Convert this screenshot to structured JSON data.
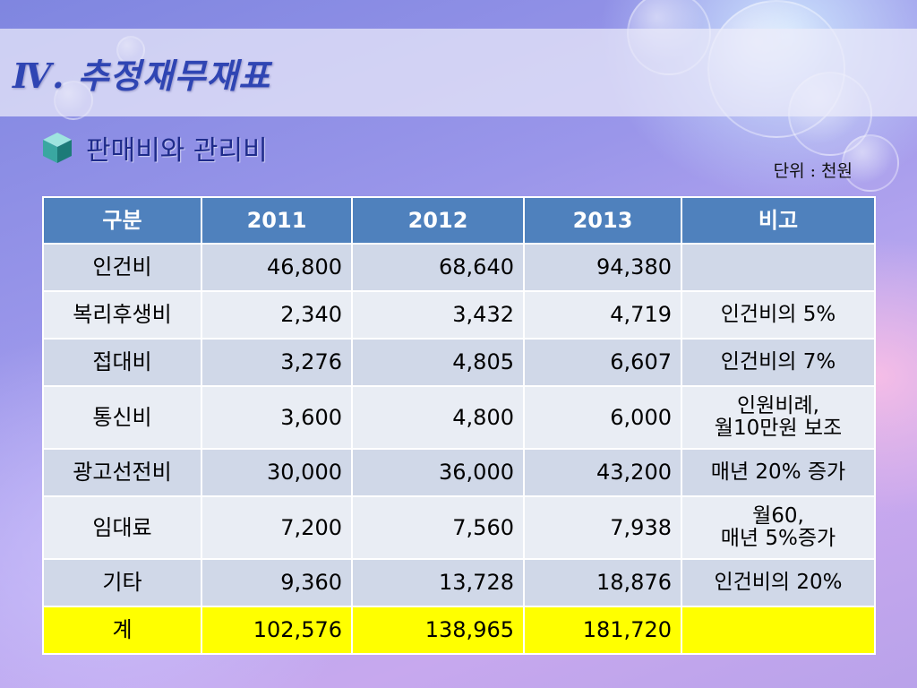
{
  "slide": {
    "title": "Ⅳ. 추정재무재표",
    "section_title": "판매비와 관리비",
    "unit_label": "단위 : 천원",
    "bullet_icon": "cube-icon"
  },
  "table": {
    "headers": [
      "구분",
      "2011",
      "2012",
      "2013",
      "비고"
    ],
    "rows": [
      {
        "category": "인건비",
        "v2011": "46,800",
        "v2012": "68,640",
        "v2013": "94,380",
        "note": [
          "",
          ""
        ]
      },
      {
        "category": "복리후생비",
        "v2011": "2,340",
        "v2012": "3,432",
        "v2013": "4,719",
        "note": [
          "인건비의 5%",
          ""
        ]
      },
      {
        "category": "접대비",
        "v2011": "3,276",
        "v2012": "4,805",
        "v2013": "6,607",
        "note": [
          "인건비의 7%",
          ""
        ]
      },
      {
        "category": "통신비",
        "v2011": "3,600",
        "v2012": "4,800",
        "v2013": "6,000",
        "note": [
          "인원비례,",
          "월10만원 보조"
        ]
      },
      {
        "category": "광고선전비",
        "v2011": "30,000",
        "v2012": "36,000",
        "v2013": "43,200",
        "note": [
          "매년 20% 증가",
          ""
        ]
      },
      {
        "category": "임대료",
        "v2011": "7,200",
        "v2012": "7,560",
        "v2013": "7,938",
        "note": [
          "월60,",
          "매년 5%증가"
        ]
      },
      {
        "category": "기타",
        "v2011": "9,360",
        "v2012": "13,728",
        "v2013": "18,876",
        "note": [
          "인건비의 20%",
          ""
        ]
      },
      {
        "category": "계",
        "v2011": "102,576",
        "v2012": "138,965",
        "v2013": "181,720",
        "note": [
          "",
          ""
        ]
      }
    ]
  },
  "colors": {
    "header_bg": "#4f81bd",
    "row_odd": "#d0d8e8",
    "row_even": "#e9edf4",
    "total_row": "#ffff00",
    "title_color": "#2f45b3"
  }
}
